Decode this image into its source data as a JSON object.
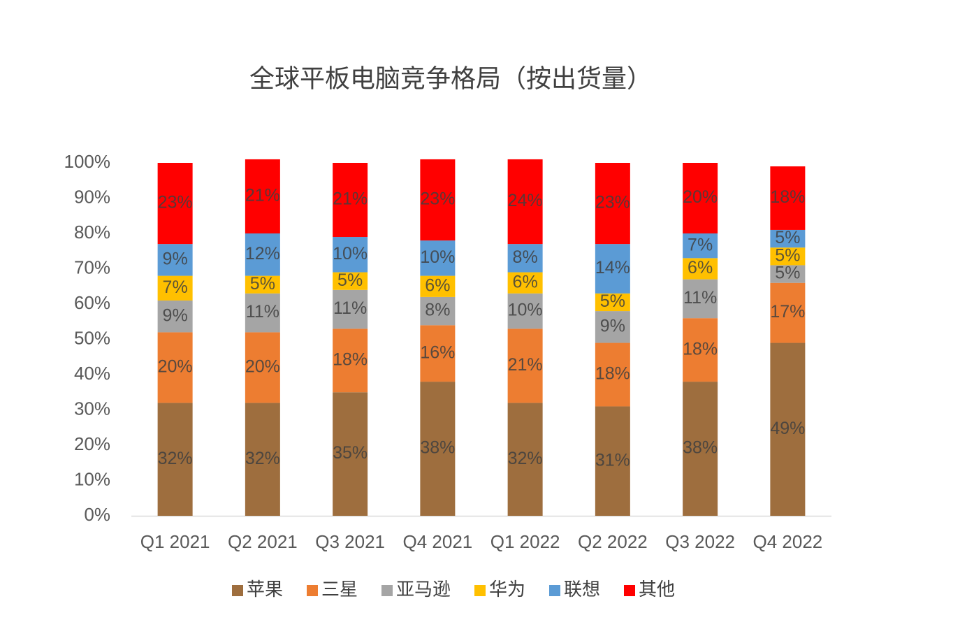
{
  "chart_data": {
    "type": "stacked_bar",
    "title": "全球平板电脑竞争格局（按出货量）",
    "categories": [
      "Q1 2021",
      "Q2 2021",
      "Q3 2021",
      "Q4 2021",
      "Q1 2022",
      "Q2 2022",
      "Q3 2022",
      "Q4 2022"
    ],
    "ylim": [
      0,
      100
    ],
    "yticks": [
      {
        "value": 0,
        "label": "0%"
      },
      {
        "value": 10,
        "label": "10%"
      },
      {
        "value": 20,
        "label": "20%"
      },
      {
        "value": 30,
        "label": "30%"
      },
      {
        "value": 40,
        "label": "40%"
      },
      {
        "value": 50,
        "label": "50%"
      },
      {
        "value": 60,
        "label": "60%"
      },
      {
        "value": 70,
        "label": "70%"
      },
      {
        "value": 80,
        "label": "80%"
      },
      {
        "value": 90,
        "label": "90%"
      },
      {
        "value": 100,
        "label": "100%"
      }
    ],
    "legend": "bottom",
    "series": [
      {
        "name": "苹果",
        "color": "#9e6e3e",
        "values": [
          32,
          32,
          35,
          38,
          32,
          31,
          38,
          49
        ],
        "value_labels": [
          "32%",
          "32%",
          "35%",
          "38%",
          "32%",
          "31%",
          "38%",
          "49%"
        ]
      },
      {
        "name": "三星",
        "color": "#ed7d31",
        "values": [
          20,
          20,
          18,
          16,
          21,
          18,
          18,
          17
        ],
        "value_labels": [
          "20%",
          "20%",
          "18%",
          "16%",
          "21%",
          "18%",
          "18%",
          "17%"
        ]
      },
      {
        "name": "亚马逊",
        "color": "#a5a5a5",
        "values": [
          9,
          11,
          11,
          8,
          10,
          9,
          11,
          5
        ],
        "value_labels": [
          "9%",
          "11%",
          "11%",
          "8%",
          "10%",
          "9%",
          "11%",
          "5%"
        ]
      },
      {
        "name": "华为",
        "color": "#ffc000",
        "values": [
          7,
          5,
          5,
          6,
          6,
          5,
          6,
          5
        ],
        "value_labels": [
          "7%",
          "5%",
          "5%",
          "6%",
          "6%",
          "5%",
          "6%",
          "5%"
        ]
      },
      {
        "name": "联想",
        "color": "#5b9bd5",
        "values": [
          9,
          12,
          10,
          10,
          8,
          14,
          7,
          5
        ],
        "value_labels": [
          "9%",
          "12%",
          "10%",
          "10%",
          "8%",
          "14%",
          "7%",
          "5%"
        ]
      },
      {
        "name": "其他",
        "color": "#ff0000",
        "values": [
          23,
          21,
          21,
          23,
          24,
          23,
          20,
          18
        ],
        "value_labels": [
          "23%",
          "21%",
          "21%",
          "23%",
          "24%",
          "23%",
          "20%",
          "18%"
        ]
      }
    ]
  }
}
